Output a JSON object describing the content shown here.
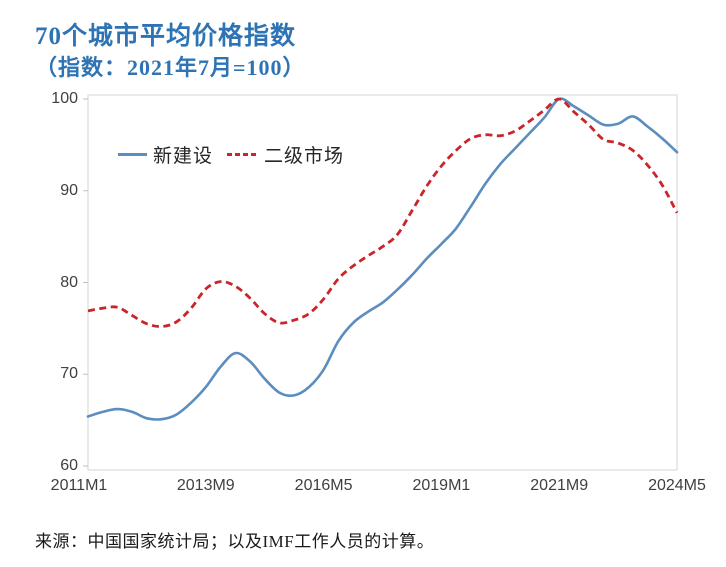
{
  "title": "70个城市平均价格指数",
  "subtitle": "（指数：2021年7月=100）",
  "source": "来源：中国国家统计局；以及IMF工作人员的计算。",
  "colors": {
    "title_blue": "#2E74B5",
    "new_construction_line": "#5B8DBE",
    "secondary_market_line": "#C9252B",
    "axis_text": "#3f3f3f",
    "plot_border": "#d6d6d6",
    "tick_mark": "#c0c0c0"
  },
  "chart_data": {
    "type": "line",
    "title": "70个城市平均价格指数",
    "subtitle": "（指数：2021年7月=100）",
    "grid": false,
    "legend_position": "top-left-inside",
    "ylim": [
      60,
      100
    ],
    "y_ticks": [
      100,
      90,
      80,
      70,
      60
    ],
    "x_tick_labels": [
      "2011M1",
      "2013M9",
      "2016M5",
      "2019M1",
      "2021M9",
      "2024M5"
    ],
    "x": [
      "2011M1",
      "2011M5",
      "2011M9",
      "2012M1",
      "2012M5",
      "2012M9",
      "2013M1",
      "2013M5",
      "2013M9",
      "2014M1",
      "2014M5",
      "2014M9",
      "2015M1",
      "2015M5",
      "2015M9",
      "2016M1",
      "2016M5",
      "2016M9",
      "2017M1",
      "2017M5",
      "2017M9",
      "2018M1",
      "2018M5",
      "2018M9",
      "2019M1",
      "2019M5",
      "2019M9",
      "2020M1",
      "2020M5",
      "2020M9",
      "2021M1",
      "2021M5",
      "2021M9",
      "2022M1",
      "2022M5",
      "2022M9",
      "2023M1",
      "2023M5",
      "2023M9",
      "2024M1",
      "2024M5"
    ],
    "series": [
      {
        "name": "新建设",
        "style": "solid",
        "color": "#5B8DBE",
        "values": [
          65.4,
          65.9,
          66.2,
          65.9,
          65.2,
          65.1,
          65.6,
          66.9,
          68.6,
          70.8,
          72.3,
          71.4,
          69.5,
          68.0,
          67.7,
          68.6,
          70.5,
          73.6,
          75.6,
          76.8,
          77.8,
          79.2,
          80.8,
          82.6,
          84.2,
          85.9,
          88.3,
          90.8,
          92.9,
          94.6,
          96.3,
          98.0,
          100.0,
          99.2,
          98.2,
          97.2,
          97.3,
          98.1,
          97.0,
          95.7,
          94.2
        ]
      },
      {
        "name": "二级市场",
        "style": "dashed",
        "color": "#C9252B",
        "values": [
          76.9,
          77.2,
          77.3,
          76.4,
          75.5,
          75.2,
          75.7,
          77.2,
          79.3,
          80.1,
          79.6,
          78.3,
          76.6,
          75.6,
          75.9,
          76.6,
          78.2,
          80.4,
          81.8,
          82.9,
          83.9,
          85.2,
          87.8,
          90.5,
          92.7,
          94.4,
          95.7,
          96.1,
          96.0,
          96.5,
          97.6,
          98.8,
          100.0,
          98.6,
          97.2,
          95.6,
          95.2,
          94.4,
          92.8,
          90.6,
          87.6
        ]
      }
    ]
  }
}
